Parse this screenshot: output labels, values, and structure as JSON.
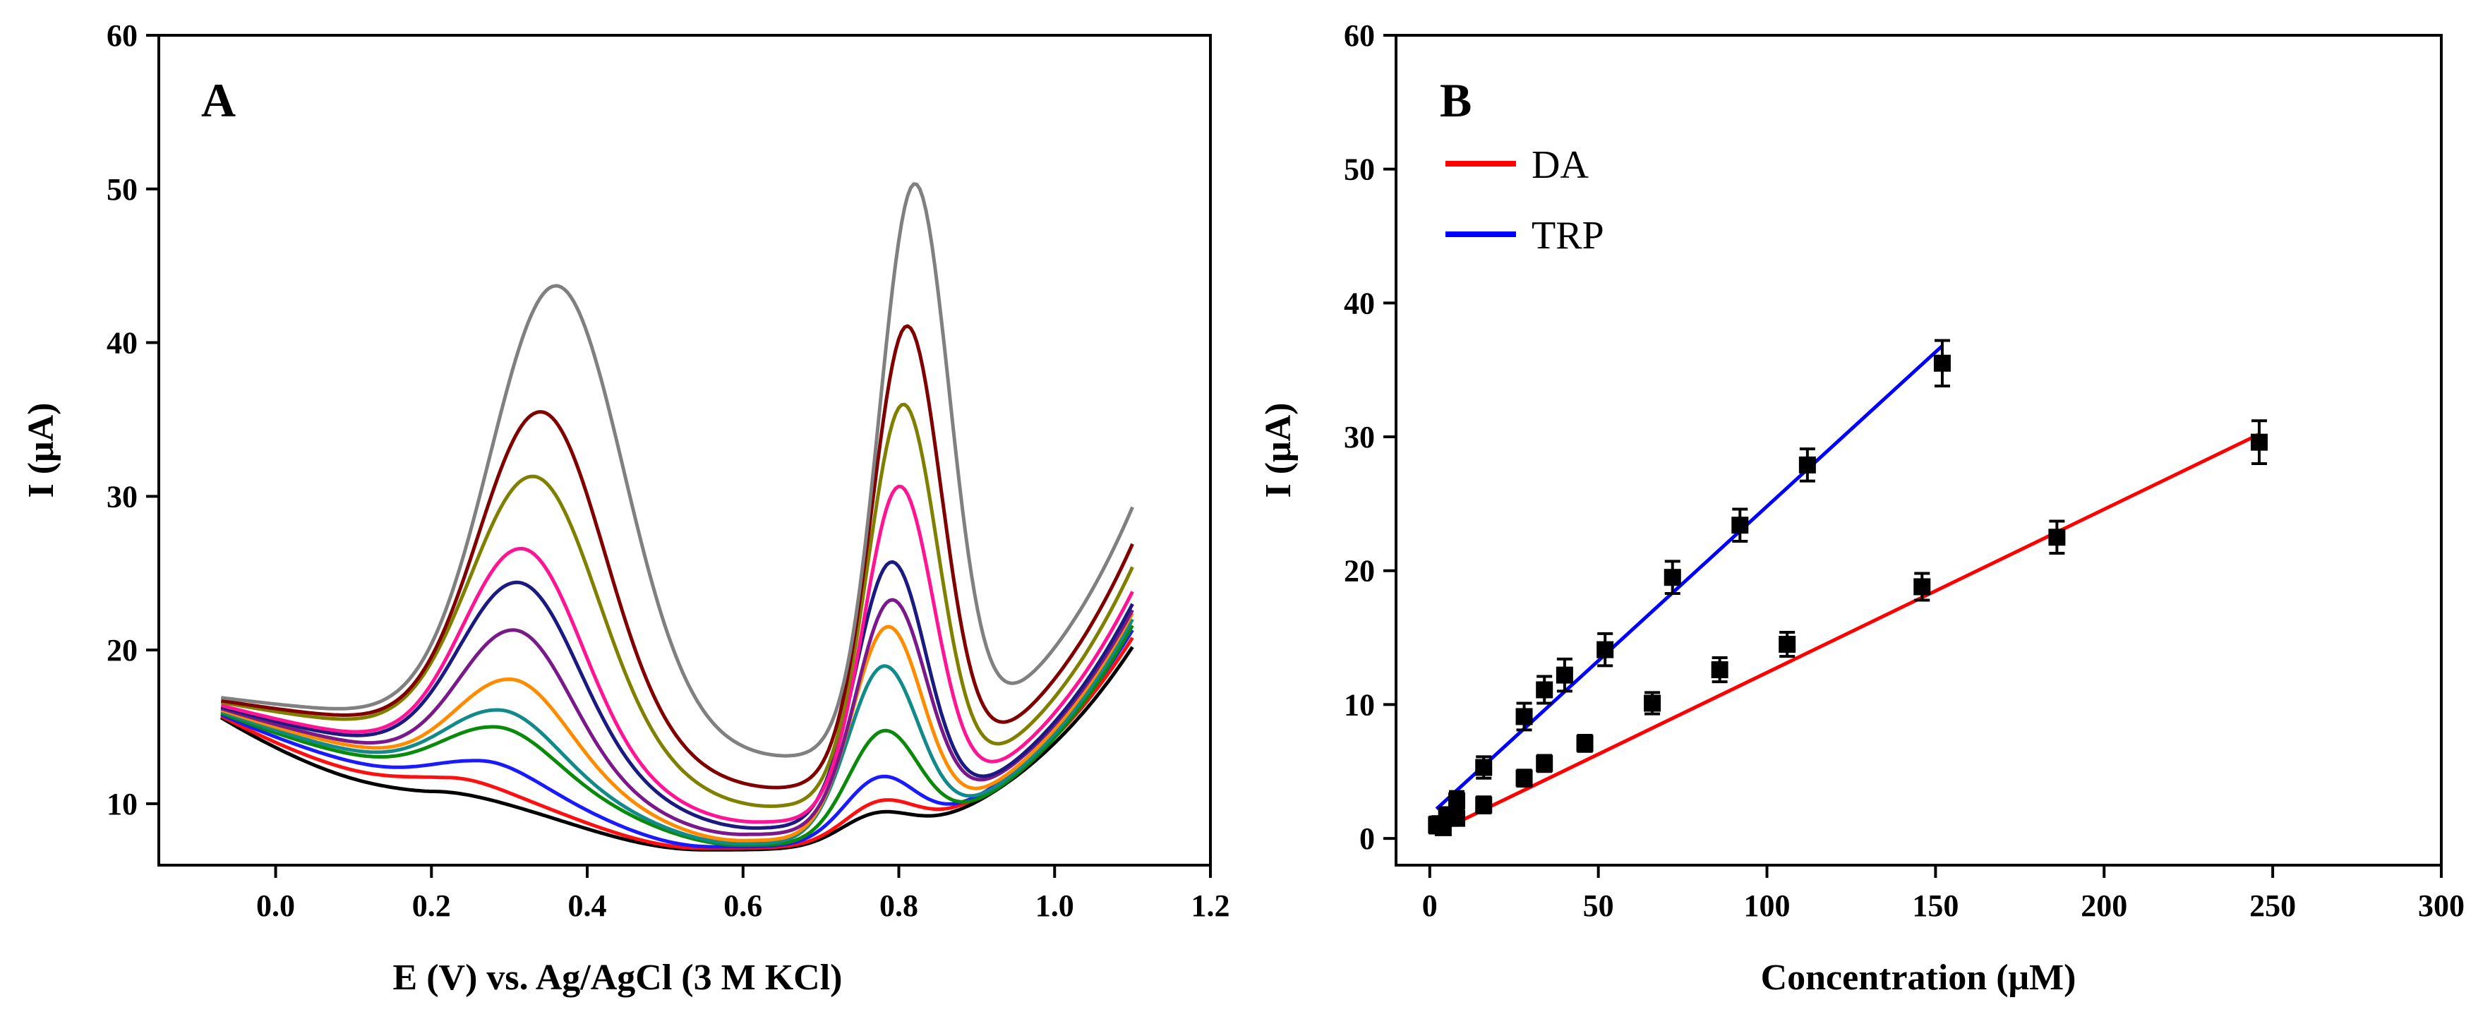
{
  "chart_data": [
    {
      "panel_label": "A",
      "type": "line",
      "xlabel": "E (V) vs. Ag/AgCl (3 M KCl)",
      "ylabel": "I (μA)",
      "xlim": [
        -0.15,
        1.2
      ],
      "ylim": [
        6,
        60
      ],
      "x_ticks": [
        "0.0",
        "0.2",
        "0.4",
        "0.6",
        "0.8",
        "1.0",
        "1.2"
      ],
      "x_tick_values": [
        0.0,
        0.2,
        0.4,
        0.6,
        0.8,
        1.0,
        1.2
      ],
      "y_ticks": [
        "10",
        "20",
        "30",
        "40",
        "50",
        "60"
      ],
      "y_tick_values": [
        10,
        20,
        30,
        40,
        50,
        60
      ],
      "x_range_data": [
        -0.07,
        1.1
      ],
      "series": [
        {
          "color": "#000000",
          "start": 15.6,
          "b1": 10.5,
          "c1": 0.2,
          "w1": 0.06,
          "h1": 0.3,
          "c2": 0.77,
          "w2": 0.045,
          "h2": 1.7,
          "min_pos": 0.55,
          "min_val": 7.0,
          "end": 20.2
        },
        {
          "color": "#ff1010",
          "start": 15.7,
          "b1": 10.9,
          "c1": 0.22,
          "w1": 0.06,
          "h1": 0.8,
          "c2": 0.775,
          "w2": 0.045,
          "h2": 2.3,
          "min_pos": 0.55,
          "min_val": 7.1,
          "end": 20.8
        },
        {
          "color": "#1a1aff",
          "start": 15.8,
          "b1": 11.2,
          "c1": 0.26,
          "w1": 0.065,
          "h1": 1.6,
          "c2": 0.775,
          "w2": 0.045,
          "h2": 3.8,
          "min_pos": 0.56,
          "min_val": 7.2,
          "end": 21.3
        },
        {
          "color": "#0a8a0a",
          "start": 15.9,
          "b1": 11.6,
          "c1": 0.28,
          "w1": 0.07,
          "h1": 3.4,
          "c2": 0.78,
          "w2": 0.045,
          "h2": 6.9,
          "min_pos": 0.6,
          "min_val": 7.3,
          "end": 21.6
        },
        {
          "color": "#138a8a",
          "start": 16.0,
          "b1": 11.9,
          "c1": 0.285,
          "w1": 0.07,
          "h1": 4.2,
          "c2": 0.78,
          "w2": 0.045,
          "h2": 11.0,
          "min_pos": 0.6,
          "min_val": 7.4,
          "end": 22.0
        },
        {
          "color": "#ff8c00",
          "start": 16.1,
          "b1": 12.2,
          "c1": 0.3,
          "w1": 0.07,
          "h1": 5.9,
          "c2": 0.785,
          "w2": 0.045,
          "h2": 13.3,
          "min_pos": 0.6,
          "min_val": 7.6,
          "end": 22.4
        },
        {
          "color": "#7a1a8a",
          "start": 16.2,
          "b1": 12.5,
          "c1": 0.305,
          "w1": 0.07,
          "h1": 8.8,
          "c2": 0.79,
          "w2": 0.045,
          "h2": 14.6,
          "min_pos": 0.6,
          "min_val": 8.0,
          "end": 22.6
        },
        {
          "color": "#1a1a80",
          "start": 16.3,
          "b1": 12.9,
          "c1": 0.31,
          "w1": 0.075,
          "h1": 11.5,
          "c2": 0.79,
          "w2": 0.045,
          "h2": 16.8,
          "min_pos": 0.62,
          "min_val": 8.4,
          "end": 23.0
        },
        {
          "color": "#ff1493",
          "start": 16.4,
          "b1": 13.2,
          "c1": 0.315,
          "w1": 0.075,
          "h1": 13.4,
          "c2": 0.8,
          "w2": 0.045,
          "h2": 21.2,
          "min_pos": 0.62,
          "min_val": 8.8,
          "end": 23.8
        },
        {
          "color": "#808000",
          "start": 16.6,
          "b1": 14.3,
          "c1": 0.33,
          "w1": 0.08,
          "h1": 17.0,
          "c2": 0.805,
          "w2": 0.045,
          "h2": 25.6,
          "min_pos": 0.64,
          "min_val": 9.8,
          "end": 25.4
        },
        {
          "color": "#800000",
          "start": 16.7,
          "b1": 14.7,
          "c1": 0.34,
          "w1": 0.08,
          "h1": 20.8,
          "c2": 0.81,
          "w2": 0.045,
          "h2": 29.5,
          "min_pos": 0.65,
          "min_val": 11.0,
          "end": 26.9
        },
        {
          "color": "#808080",
          "start": 16.9,
          "b1": 15.2,
          "c1": 0.36,
          "w1": 0.085,
          "h1": 28.5,
          "c2": 0.82,
          "w2": 0.045,
          "h2": 36.7,
          "min_pos": 0.66,
          "min_val": 13.0,
          "end": 29.3
        }
      ]
    },
    {
      "panel_label": "B",
      "type": "scatter",
      "xlabel": "Concentration (μM)",
      "ylabel": "I (μA)",
      "xlim": [
        -10,
        300
      ],
      "ylim": [
        -2,
        60
      ],
      "x_ticks": [
        "0",
        "50",
        "100",
        "150",
        "200",
        "250",
        "300"
      ],
      "x_tick_values": [
        0,
        50,
        100,
        150,
        200,
        250,
        300
      ],
      "y_ticks": [
        "0",
        "10",
        "20",
        "30",
        "40",
        "50",
        "60"
      ],
      "y_tick_values": [
        0,
        10,
        20,
        30,
        40,
        50,
        60
      ],
      "legend": [
        {
          "label": "DA",
          "color": "#ff0000"
        },
        {
          "label": "TRP",
          "color": "#0000ff"
        }
      ],
      "series": [
        {
          "name": "DA",
          "color": "#ff0000",
          "fit": {
            "x": [
              5,
              246
            ],
            "y": [
              0.8,
              30.2
            ]
          },
          "x": [
            2,
            4,
            6,
            8,
            16,
            28,
            34,
            46,
            66,
            86,
            106,
            146,
            186,
            246
          ],
          "y": [
            1.0,
            0.8,
            1.5,
            1.5,
            2.5,
            4.5,
            5.6,
            7.1,
            10.1,
            12.6,
            14.5,
            18.8,
            22.5,
            29.6
          ],
          "err": [
            0.6,
            0.5,
            0.5,
            0.5,
            0.6,
            0.6,
            0.6,
            0.6,
            0.8,
            0.9,
            0.9,
            1.0,
            1.2,
            1.6
          ]
        },
        {
          "name": "TRP",
          "color": "#0000ff",
          "fit": {
            "x": [
              2,
              152
            ],
            "y": [
              2.2,
              36.8
            ]
          },
          "x": [
            3,
            5,
            8,
            16,
            28,
            34,
            40,
            52,
            72,
            92,
            112,
            152
          ],
          "y": [
            1.1,
            1.7,
            2.8,
            5.3,
            9.1,
            11.1,
            12.2,
            14.1,
            19.5,
            23.4,
            27.9,
            35.5
          ],
          "err": [
            0.5,
            0.6,
            0.7,
            0.8,
            1.0,
            1.0,
            1.2,
            1.2,
            1.2,
            1.2,
            1.2,
            1.7
          ]
        }
      ]
    }
  ]
}
